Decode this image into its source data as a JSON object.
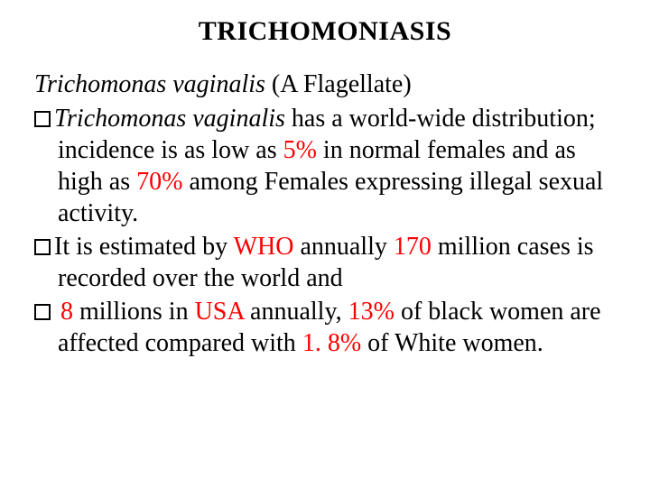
{
  "title": "TRICHOMONIASIS",
  "subtitle_sci": "Trichomonas vaginalis",
  "subtitle_rest": " (A Flagellate)",
  "bullets": [
    {
      "pre_sci": "Trichomonas vaginalis",
      "seg1": " has a world-wide distribution; incidence is as low as ",
      "hl1": "5% ",
      "seg2": "in normal females and as high as ",
      "hl2": "70% ",
      "seg3": "among   Females expressing illegal sexual activity."
    },
    {
      "seg1": "It is estimated by ",
      "hl1": "WHO",
      "seg2": " annually ",
      "hl2": "170 ",
      "seg3": "million cases is recorded over the world and"
    },
    {
      "lead_space": " ",
      "hl1": "8 ",
      "seg1": "millions in ",
      "hl2": "USA",
      "seg2": "  annually,",
      "hl3": " 13% ",
      "seg3": "of black women are affected compared with ",
      "hl4": "1. 8% ",
      "seg4": "of  White women."
    }
  ],
  "colors": {
    "text": "#000000",
    "highlight": "#ff0000",
    "background": "#ffffff"
  },
  "font": {
    "family": "Times New Roman",
    "title_size_pt": 30,
    "body_size_pt": 28,
    "title_weight": "bold"
  }
}
